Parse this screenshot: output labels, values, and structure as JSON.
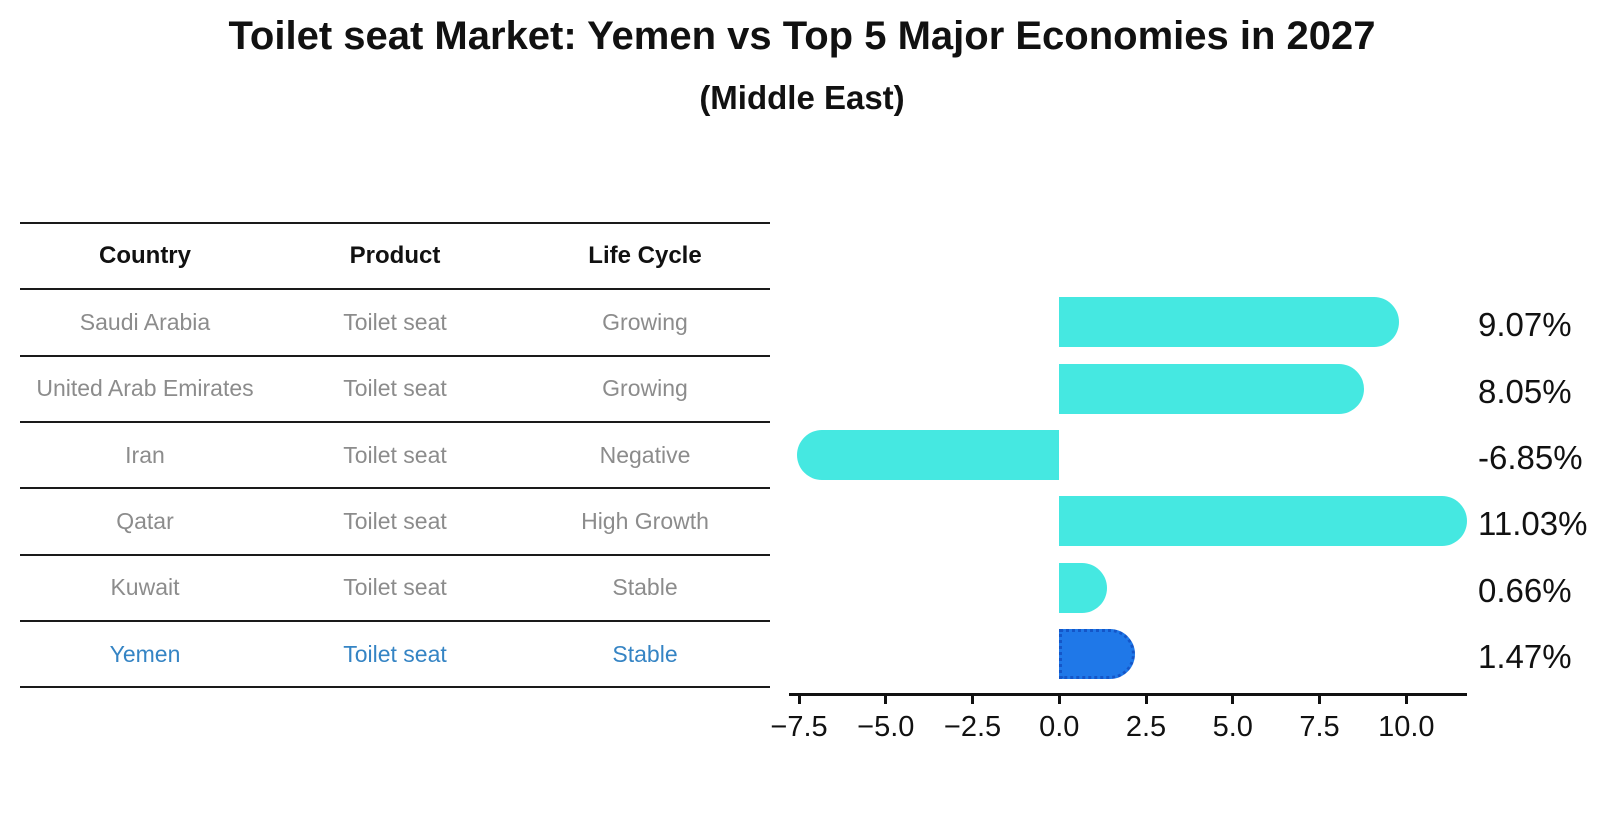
{
  "header": {
    "title": "Toilet seat Market: Yemen vs Top 5 Major Economies in 2027",
    "subtitle": "(Middle East)"
  },
  "table": {
    "columns": [
      "Country",
      "Product",
      "Life Cycle"
    ],
    "rows": [
      {
        "country": "Saudi Arabia",
        "product": "Toilet seat",
        "life_cycle": "Growing",
        "value_label": "9.07%",
        "highlight": false
      },
      {
        "country": "United Arab Emirates",
        "product": "Toilet seat",
        "life_cycle": "Growing",
        "value_label": "8.05%",
        "highlight": false
      },
      {
        "country": "Iran",
        "product": "Toilet seat",
        "life_cycle": "Negative",
        "value_label": "-6.85%",
        "highlight": false
      },
      {
        "country": "Qatar",
        "product": "Toilet seat",
        "life_cycle": "High Growth",
        "value_label": "11.03%",
        "highlight": false
      },
      {
        "country": "Kuwait",
        "product": "Toilet seat",
        "life_cycle": "Stable",
        "value_label": "0.66%",
        "highlight": false
      },
      {
        "country": "Yemen",
        "product": "Toilet seat",
        "life_cycle": "Stable",
        "value_label": "1.47%",
        "highlight": true
      }
    ]
  },
  "chart_data": {
    "type": "bar",
    "orientation": "horizontal",
    "title": "Toilet seat Market: Yemen vs Top 5 Major Economies in 2027",
    "subtitle": "(Middle East)",
    "categories": [
      "Saudi Arabia",
      "United Arab Emirates",
      "Iran",
      "Qatar",
      "Kuwait",
      "Yemen"
    ],
    "values": [
      9.07,
      8.05,
      -6.85,
      11.03,
      0.66,
      1.47
    ],
    "value_labels": [
      "9.07%",
      "8.05%",
      "-6.85%",
      "11.03%",
      "0.66%",
      "1.47%"
    ],
    "unit": "percent",
    "x_ticks": [
      -7.5,
      -5.0,
      -2.5,
      0.0,
      2.5,
      5.0,
      7.5,
      10.0
    ],
    "x_tick_labels": [
      "−7.5",
      "−5.0",
      "−2.5",
      "0.0",
      "2.5",
      "5.0",
      "7.5",
      "10.0"
    ],
    "xlim": [
      -7.8,
      11.8
    ],
    "grid": false,
    "legend": false,
    "highlight_category": "Yemen"
  },
  "colors": {
    "bar": "#45e8e1",
    "highlight_bar": "#1f78e8",
    "highlight_bar_border": "#1456c8",
    "highlight_text": "#3584c4",
    "table_text": "#8c8c8c",
    "heading_text": "#111111"
  }
}
